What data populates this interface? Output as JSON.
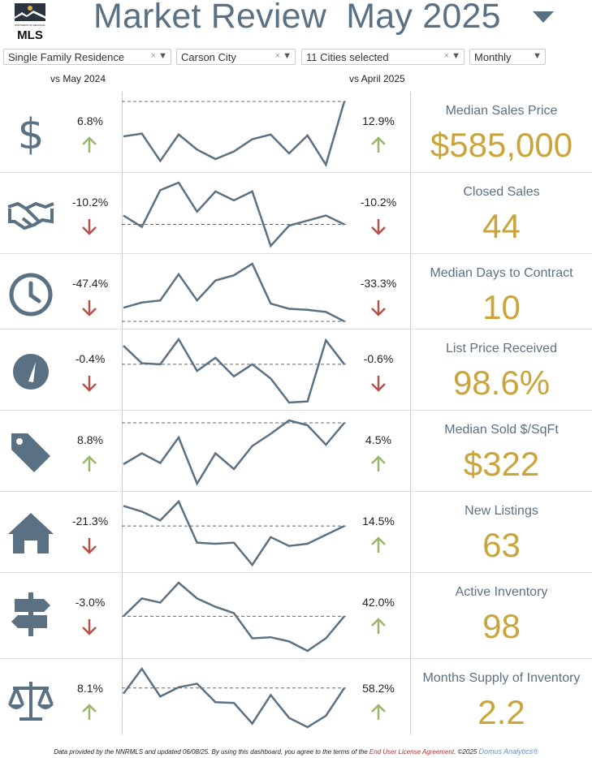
{
  "header": {
    "logo_text": "NORTHERN NV REGIONAL MLS",
    "title": "Market Review",
    "period": "May 2025"
  },
  "filters": [
    {
      "value": "Single Family Residence",
      "clearable": true
    },
    {
      "value": "Carson City",
      "clearable": true
    },
    {
      "value": "11 Cities selected",
      "clearable": true
    },
    {
      "value": "Monthly",
      "clearable": false
    }
  ],
  "compare": {
    "yoy": "vs May 2024",
    "mom": "vs April 2025"
  },
  "colors": {
    "slate": "#5a7184",
    "gold": "#c9a53b",
    "up": "#9bb56b",
    "down": "#b5524a"
  },
  "metrics": [
    {
      "label": "Median Sales Price",
      "value": "$585,000",
      "yoy": "6.8%",
      "yoy_dir": "up",
      "mom": "12.9%",
      "mom_dir": "up",
      "icon": "dollar-icon",
      "trend": [
        48,
        51,
        22,
        50,
        34,
        24,
        32,
        45,
        50,
        30,
        49,
        18,
        85
      ]
    },
    {
      "label": "Closed Sales",
      "value": "44",
      "yoy": "-10.2%",
      "yoy_dir": "down",
      "mom": "-10.2%",
      "mom_dir": "down",
      "icon": "handshake-icon",
      "trend": [
        48,
        39,
        68,
        74,
        51,
        67,
        60,
        67,
        24,
        40,
        44,
        48,
        41
      ]
    },
    {
      "label": "Median Days to Contract",
      "value": "10",
      "yoy": "-47.4%",
      "yoy_dir": "down",
      "mom": "-33.3%",
      "mom_dir": "down",
      "icon": "clock-icon",
      "trend": [
        28,
        33,
        35,
        60,
        35,
        54,
        59,
        70,
        32,
        27,
        26,
        24,
        15
      ]
    },
    {
      "label": "List Price Received",
      "value": "98.6%",
      "yoy": "-0.4%",
      "yoy_dir": "down",
      "mom": "-0.6%",
      "mom_dir": "down",
      "icon": "gauge-icon",
      "trend": [
        69,
        53,
        52,
        75,
        46,
        58,
        41,
        52,
        39,
        17,
        18,
        74,
        52
      ]
    },
    {
      "label": "Median Sold $/SqFt",
      "value": "$322",
      "yoy": "8.8%",
      "yoy_dir": "up",
      "mom": "4.5%",
      "mom_dir": "up",
      "icon": "tag-icon",
      "trend": [
        45,
        54,
        46,
        67,
        29,
        54,
        41,
        60,
        70,
        81,
        77,
        61,
        79
      ]
    },
    {
      "label": "New Listings",
      "value": "63",
      "yoy": "-21.3%",
      "yoy_dir": "down",
      "mom": "14.5%",
      "mom_dir": "up",
      "icon": "house-icon",
      "trend": [
        80,
        75,
        67,
        84,
        47,
        46,
        47,
        27,
        52,
        44,
        46,
        54,
        62
      ]
    },
    {
      "label": "Active Inventory",
      "value": "98",
      "yoy": "-3.0%",
      "yoy_dir": "down",
      "mom": "42.0%",
      "mom_dir": "up",
      "icon": "signpost-icon",
      "trend": [
        69,
        86,
        82,
        101,
        86,
        78,
        72,
        48,
        49,
        45,
        36,
        48,
        69
      ]
    },
    {
      "label": "Months Supply of Inventory",
      "value": "2.2",
      "yoy": "8.1%",
      "yoy_dir": "up",
      "mom": "58.2%",
      "mom_dir": "up",
      "icon": "scales-icon",
      "trend": [
        49,
        84,
        45,
        58,
        63,
        37,
        36,
        7,
        47,
        15,
        2,
        18,
        57
      ]
    }
  ],
  "footer": {
    "text": "Data provided by the NNRMLS and updated 06/08/25.  By using this dashboard, you agree to the terms of the ",
    "eula": "End User License Agreement",
    "copyright": ".  ©2025 ",
    "brand": "Domus Analytics®"
  }
}
